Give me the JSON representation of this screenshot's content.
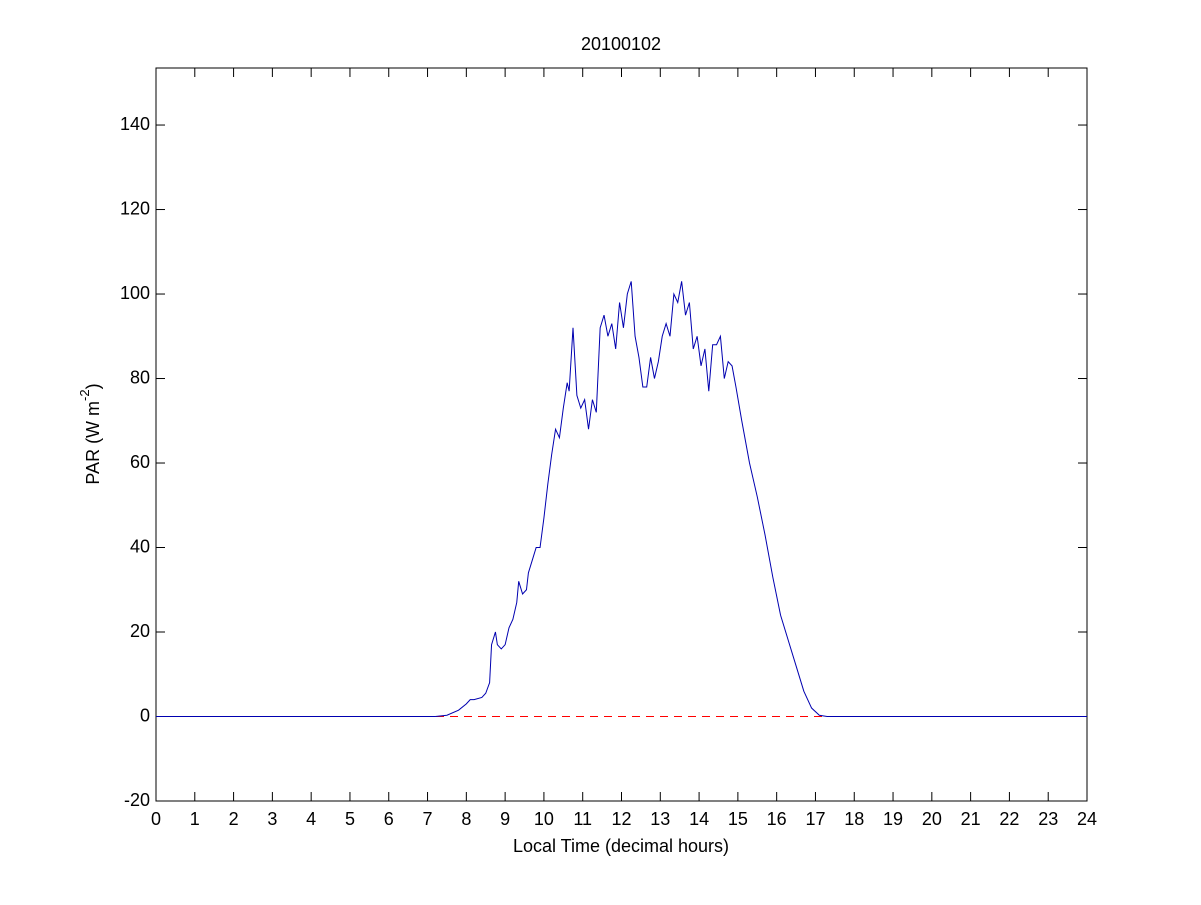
{
  "chart_data": {
    "type": "line",
    "title": "20100102",
    "xlabel": "Local Time (decimal hours)",
    "ylabel": {
      "base": "PAR (W m",
      "sup": "-2",
      "end": ")"
    },
    "x": [
      0,
      7.2,
      7.5,
      7.8,
      8.0,
      8.1,
      8.2,
      8.4,
      8.5,
      8.6,
      8.65,
      8.75,
      8.8,
      8.9,
      9.0,
      9.1,
      9.2,
      9.3,
      9.35,
      9.45,
      9.55,
      9.6,
      9.7,
      9.8,
      9.9,
      10.0,
      10.1,
      10.2,
      10.3,
      10.4,
      10.5,
      10.6,
      10.65,
      10.75,
      10.85,
      10.95,
      11.05,
      11.15,
      11.25,
      11.35,
      11.45,
      11.55,
      11.65,
      11.75,
      11.85,
      11.95,
      12.05,
      12.15,
      12.25,
      12.35,
      12.45,
      12.55,
      12.65,
      12.75,
      12.85,
      12.95,
      13.05,
      13.15,
      13.25,
      13.35,
      13.45,
      13.55,
      13.65,
      13.75,
      13.85,
      13.95,
      14.05,
      14.15,
      14.25,
      14.35,
      14.45,
      14.55,
      14.65,
      14.75,
      14.85,
      14.95,
      15.1,
      15.3,
      15.5,
      15.7,
      15.9,
      16.1,
      16.3,
      16.5,
      16.7,
      16.9,
      17.1,
      17.3,
      24
    ],
    "series": [
      {
        "color": "#0000b0",
        "values": [
          0,
          0,
          0.3,
          1.5,
          3,
          4,
          4,
          4.5,
          5.5,
          8,
          17,
          20,
          17,
          16,
          17,
          21,
          23,
          27,
          32,
          29,
          30,
          34,
          37,
          40,
          40,
          47,
          55,
          62,
          68,
          66,
          73,
          79,
          77,
          92,
          76,
          73,
          75,
          68,
          75,
          72,
          92,
          95,
          90,
          93,
          87,
          98,
          92,
          100,
          103,
          90,
          85,
          78,
          78,
          85,
          80,
          84,
          90,
          93,
          90,
          100,
          98,
          103,
          95,
          98,
          87,
          90,
          83,
          87,
          77,
          88,
          88,
          90,
          80,
          84,
          83,
          78,
          70,
          60,
          52,
          43,
          33,
          24,
          18,
          12,
          6,
          2,
          0.3,
          0,
          0
        ]
      }
    ],
    "hline": {
      "y": 0,
      "color": "#ff0000",
      "dashed": true
    },
    "xlim": [
      0,
      24
    ],
    "xticks": [
      0,
      1,
      2,
      3,
      4,
      5,
      6,
      7,
      8,
      9,
      10,
      11,
      12,
      13,
      14,
      15,
      16,
      17,
      18,
      19,
      20,
      21,
      22,
      23,
      24
    ],
    "ylim": [
      -20,
      153.5
    ],
    "yticks": [
      -20,
      0,
      20,
      40,
      60,
      80,
      100,
      120,
      140
    ]
  }
}
